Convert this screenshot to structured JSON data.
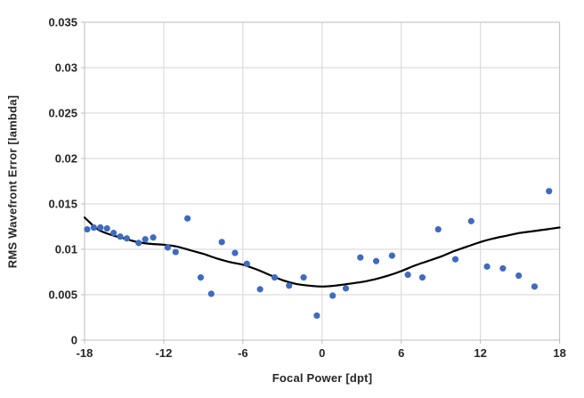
{
  "figure": {
    "background": "#FFFFFF"
  },
  "chart_data": {
    "type": "scatter",
    "title": "",
    "xlabel": "Focal Power [dpt]",
    "ylabel": "RMS Wavefront Error [lambda]",
    "xlim": [
      -18,
      18
    ],
    "ylim": [
      0,
      0.035
    ],
    "x_ticks": [
      -18,
      -12,
      -6,
      0,
      6,
      12,
      18
    ],
    "y_ticks": [
      0,
      0.005,
      0.01,
      0.015,
      0.02,
      0.025,
      0.03,
      0.035
    ],
    "grid": true,
    "legend": "none",
    "series": [
      {
        "name": "RMS wavefront error samples",
        "kind": "scatter",
        "color": "#3F6BBF",
        "points": [
          [
            -17.8,
            0.0122
          ],
          [
            -17.3,
            0.0124
          ],
          [
            -16.8,
            0.0124
          ],
          [
            -16.3,
            0.0123
          ],
          [
            -15.8,
            0.0118
          ],
          [
            -15.3,
            0.0114
          ],
          [
            -14.8,
            0.0112
          ],
          [
            -13.9,
            0.0107
          ],
          [
            -13.4,
            0.0111
          ],
          [
            -12.8,
            0.0113
          ],
          [
            -11.7,
            0.0102
          ],
          [
            -11.1,
            0.0097
          ],
          [
            -10.2,
            0.0134
          ],
          [
            -9.2,
            0.0069
          ],
          [
            -8.4,
            0.0051
          ],
          [
            -7.6,
            0.0108
          ],
          [
            -6.6,
            0.0096
          ],
          [
            -5.7,
            0.0084
          ],
          [
            -4.7,
            0.0056
          ],
          [
            -3.6,
            0.0069
          ],
          [
            -2.5,
            0.006
          ],
          [
            -1.4,
            0.0069
          ],
          [
            -0.4,
            0.0027
          ],
          [
            0.8,
            0.0049
          ],
          [
            1.8,
            0.0057
          ],
          [
            2.9,
            0.0091
          ],
          [
            4.1,
            0.0087
          ],
          [
            5.3,
            0.0093
          ],
          [
            6.5,
            0.0072
          ],
          [
            7.6,
            0.0069
          ],
          [
            8.8,
            0.0122
          ],
          [
            10.1,
            0.0089
          ],
          [
            11.3,
            0.0131
          ],
          [
            12.5,
            0.0081
          ],
          [
            13.7,
            0.0079
          ],
          [
            14.9,
            0.0071
          ],
          [
            16.1,
            0.0059
          ],
          [
            17.2,
            0.0164
          ]
        ]
      },
      {
        "name": "trend line",
        "kind": "line",
        "color": "#000000",
        "x": [
          -18,
          -17,
          -16,
          -15,
          -14,
          -13,
          -12,
          -11,
          -10,
          -9,
          -8,
          -7,
          -6,
          -5,
          -4,
          -3,
          -2,
          -1,
          0,
          1,
          2,
          3,
          4,
          5,
          6,
          7,
          8,
          9,
          10,
          11,
          12,
          13,
          14,
          15,
          16,
          17,
          18
        ],
        "y": [
          0.0135,
          0.0122,
          0.0116,
          0.0112,
          0.0108,
          0.0106,
          0.0105,
          0.0103,
          0.0099,
          0.0095,
          0.009,
          0.0086,
          0.0083,
          0.0078,
          0.0072,
          0.0066,
          0.0062,
          0.006,
          0.0059,
          0.006,
          0.0062,
          0.0064,
          0.0067,
          0.0071,
          0.0076,
          0.0082,
          0.0087,
          0.0092,
          0.0098,
          0.0103,
          0.0108,
          0.0112,
          0.0115,
          0.0118,
          0.012,
          0.0122,
          0.0124
        ]
      }
    ]
  },
  "style": {
    "grid_color": "#D6D6D6",
    "border_color": "#BDBDBD",
    "tick_color": "#BDBDBD",
    "text_color": "#262626",
    "marker_radius": 3.6,
    "trend_width": 2.2
  }
}
